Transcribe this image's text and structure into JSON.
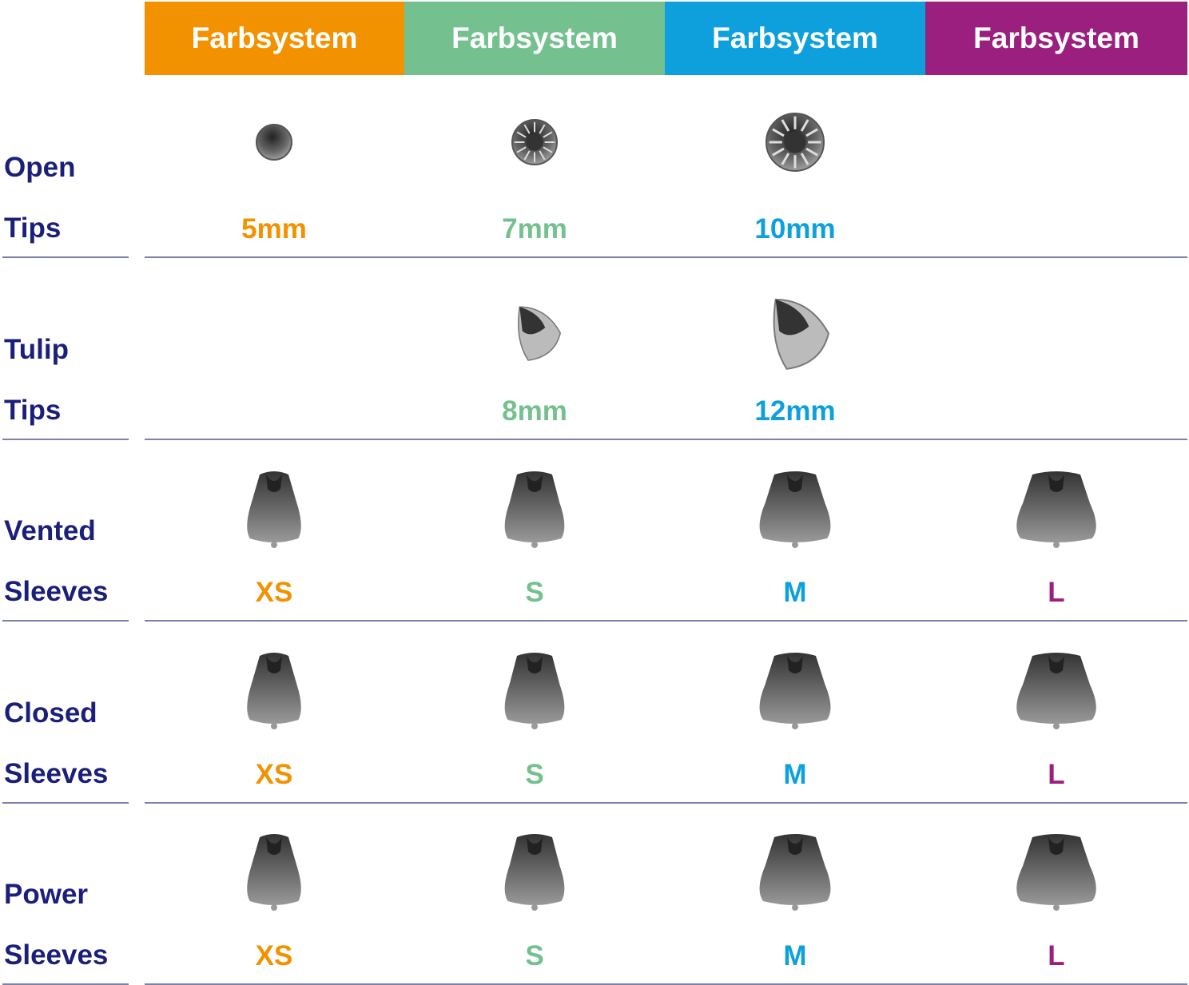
{
  "columns": [
    {
      "label": "Farbsystem",
      "color": "#F39200"
    },
    {
      "label": "Farbsystem",
      "color": "#74C18F"
    },
    {
      "label": "Farbsystem",
      "color": "#0EA0DC"
    },
    {
      "label": "Farbsystem",
      "color": "#9B1F7F"
    }
  ],
  "label_color": "#1B1F7A",
  "rows": [
    {
      "line1": "Open",
      "line2": "Tips",
      "icon": "open-tip-icon",
      "sizes": [
        "5mm",
        "7mm",
        "10mm",
        null
      ]
    },
    {
      "line1": "Tulip",
      "line2": "Tips",
      "icon": "tulip-tip-icon",
      "sizes": [
        null,
        "8mm",
        "12mm",
        null
      ]
    },
    {
      "line1": "Vented",
      "line2": "Sleeves",
      "icon": "vented-sleeve-icon",
      "sizes": [
        "XS",
        "S",
        "M",
        "L"
      ]
    },
    {
      "line1": "Closed",
      "line2": "Sleeves",
      "icon": "closed-sleeve-icon",
      "sizes": [
        "XS",
        "S",
        "M",
        "L"
      ]
    },
    {
      "line1": "Power",
      "line2": "Sleeves",
      "icon": "power-sleeve-icon",
      "sizes": [
        "XS",
        "S",
        "M",
        "L"
      ]
    }
  ]
}
